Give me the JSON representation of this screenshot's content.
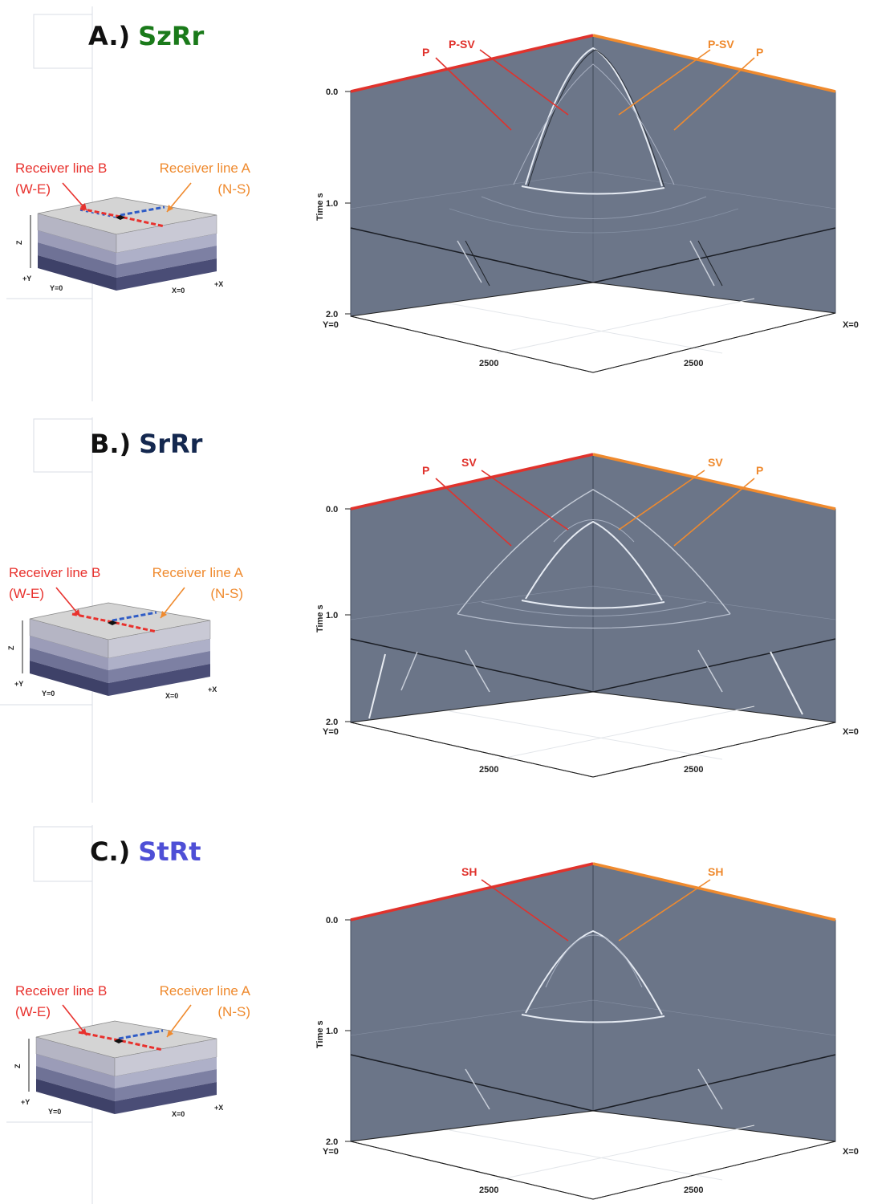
{
  "panels": [
    {
      "letter": "A.)",
      "component": "SzRr",
      "component_color": "#1a7a1a",
      "receiver_b": {
        "line1": "Receiver line B",
        "line2": "(W-E)"
      },
      "receiver_a": {
        "line1": "Receiver line A",
        "line2": "(N-S)"
      },
      "labels_left": [
        "P",
        "P-SV"
      ],
      "labels_right": [
        "P-SV",
        "P"
      ],
      "time_axis_label": "Time s",
      "tick_top": "0.0",
      "tick_mid": "1.0",
      "tick_bot": "2.0",
      "y0": "Y=0",
      "x0": "X=0",
      "dist_left": "2500",
      "dist_right": "2500",
      "model": {
        "z": "Z",
        "plus_y": "+Y",
        "y0": "Y=0",
        "x0": "X=0",
        "plus_x": "+X"
      }
    },
    {
      "letter": "B.)",
      "component": "SrRr",
      "component_color": "#14284f",
      "receiver_b": {
        "line1": "Receiver line B",
        "line2": "(W-E)"
      },
      "receiver_a": {
        "line1": "Receiver line A",
        "line2": "(N-S)"
      },
      "labels_left": [
        "P",
        "SV"
      ],
      "labels_right": [
        "SV",
        "P"
      ],
      "time_axis_label": "Time s",
      "tick_top": "0.0",
      "tick_mid": "1.0",
      "tick_bot": "2.0",
      "y0": "Y=0",
      "x0": "X=0",
      "dist_left": "2500",
      "dist_right": "2500",
      "model": {
        "z": "Z",
        "plus_y": "+Y",
        "y0": "Y=0",
        "x0": "X=0",
        "plus_x": "+X"
      }
    },
    {
      "letter": "C.)",
      "component": "StRt",
      "component_color": "#4e4fd6",
      "receiver_b": {
        "line1": "Receiver line B",
        "line2": "(W-E)"
      },
      "receiver_a": {
        "line1": "Receiver line A",
        "line2": "(N-S)"
      },
      "labels_left": [
        "SH"
      ],
      "labels_right": [
        "SH"
      ],
      "time_axis_label": "Time s",
      "tick_top": "0.0",
      "tick_mid": "1.0",
      "tick_bot": "2.0",
      "y0": "Y=0",
      "x0": "X=0",
      "dist_left": "2500",
      "dist_right": "2500",
      "model": {
        "z": "Z",
        "plus_y": "+Y",
        "y0": "Y=0",
        "x0": "X=0",
        "plus_x": "+X"
      }
    }
  ],
  "colors": {
    "line_b": "#e8312d",
    "line_a": "#ef8a2e",
    "seismic_bg": "#6b7588"
  }
}
